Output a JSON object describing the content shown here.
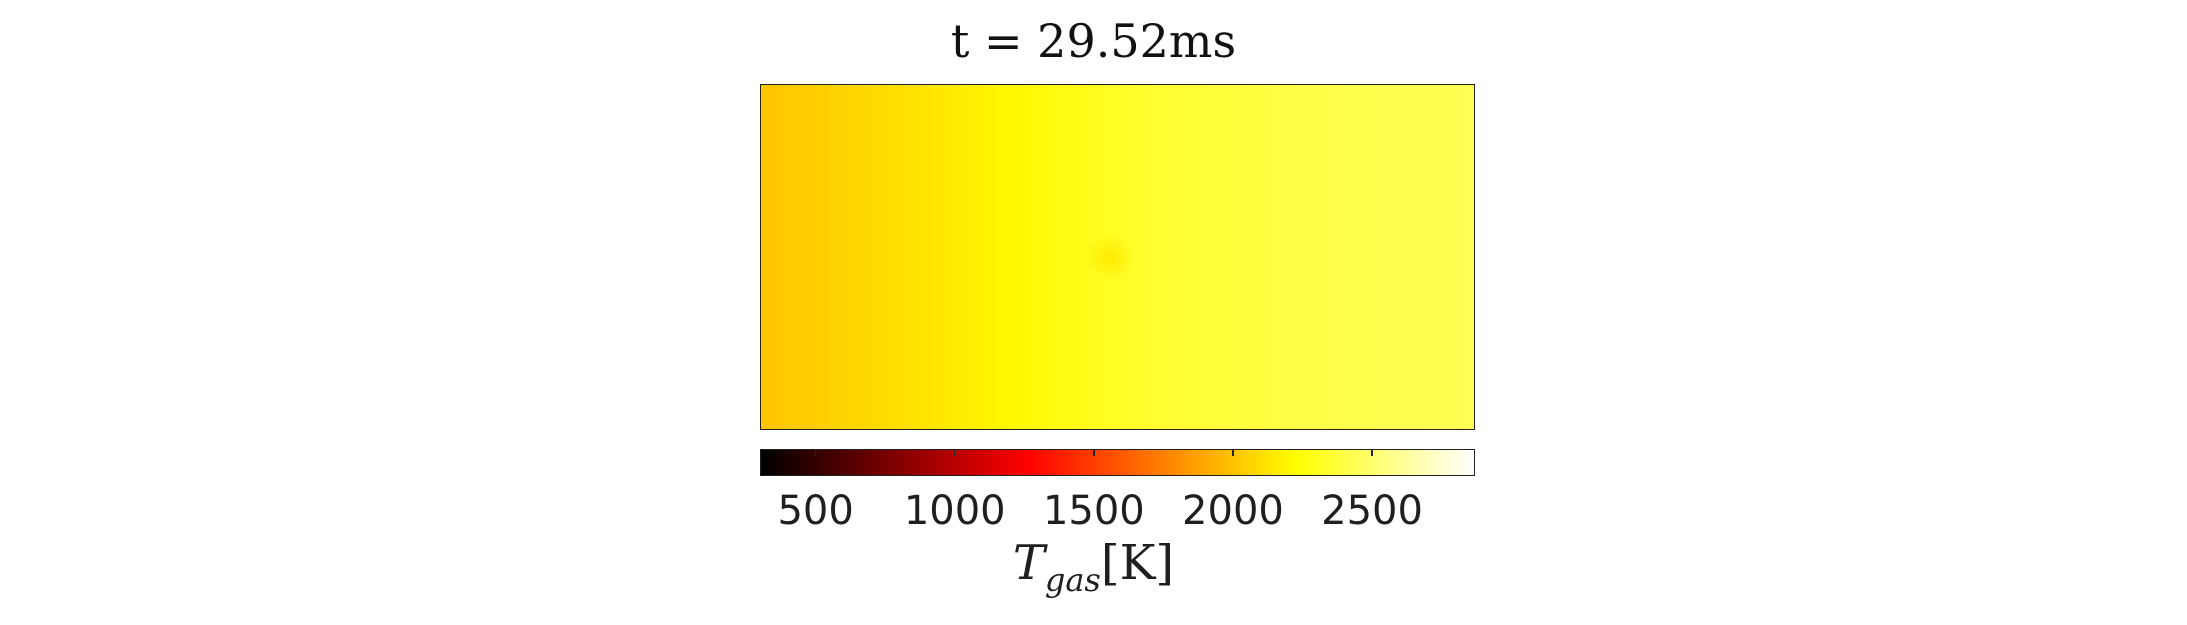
{
  "title": "t = 29.52ms",
  "chart_data": {
    "type": "heatmap",
    "title": "t = 29.52ms",
    "colormap": "hot",
    "colorbar": {
      "label_var": "T",
      "label_sub": "gas",
      "label_unit": "[K]",
      "range": [
        300,
        2870
      ],
      "ticks": [
        500,
        1000,
        1500,
        2000,
        2500
      ],
      "tick_labels": [
        "500",
        "1000",
        "1500",
        "2000",
        "2500"
      ]
    },
    "field_profile": {
      "description_values_K_along_x": [
        {
          "x": 0.0,
          "T": 2010
        },
        {
          "x": 0.15,
          "T": 2080
        },
        {
          "x": 0.35,
          "T": 2200
        },
        {
          "x": 0.55,
          "T": 2350
        },
        {
          "x": 0.8,
          "T": 2420
        },
        {
          "x": 1.0,
          "T": 2440
        }
      ],
      "local_cool_spot": {
        "x": 0.49,
        "y": 0.5,
        "T": 2150
      }
    },
    "grid": false
  }
}
